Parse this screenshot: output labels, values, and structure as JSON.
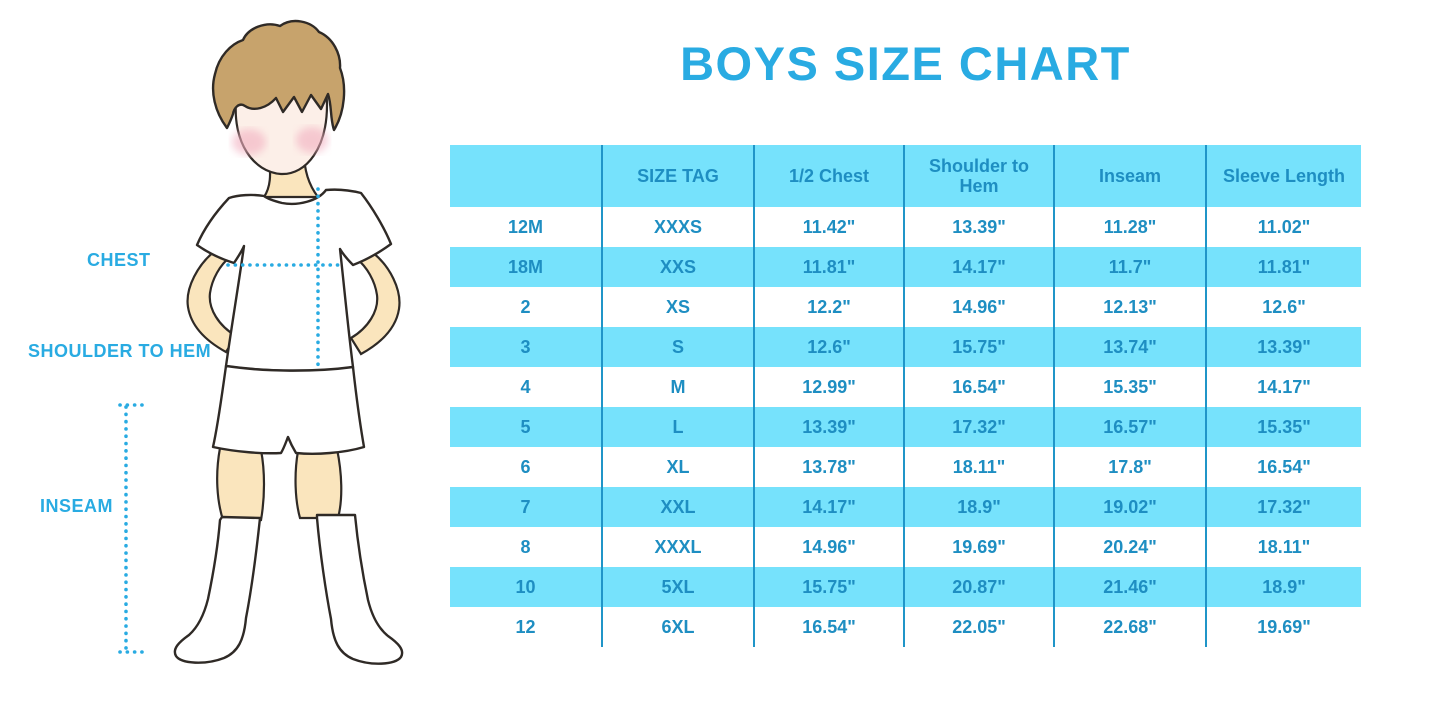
{
  "title": "BOYS SIZE CHART",
  "figure": {
    "illustration": "boy-in-white-tshirt-shorts-and-knee-socks",
    "chest_label": "CHEST",
    "shoulder_label": "SHOULDER TO HEM",
    "inseam_label": "INSEAM"
  },
  "chart_data": {
    "type": "table",
    "columns": [
      "",
      "SIZE TAG",
      "1/2 Chest",
      "Shoulder to Hem",
      "Inseam",
      "Sleeve Length"
    ],
    "rows": [
      [
        "12M",
        "XXXS",
        "11.42\"",
        "13.39\"",
        "11.28\"",
        "11.02\""
      ],
      [
        "18M",
        "XXS",
        "11.81\"",
        "14.17\"",
        "11.7\"",
        "11.81\""
      ],
      [
        "2",
        "XS",
        "12.2\"",
        "14.96\"",
        "12.13\"",
        "12.6\""
      ],
      [
        "3",
        "S",
        "12.6\"",
        "15.75\"",
        "13.74\"",
        "13.39\""
      ],
      [
        "4",
        "M",
        "12.99\"",
        "16.54\"",
        "15.35\"",
        "14.17\""
      ],
      [
        "5",
        "L",
        "13.39\"",
        "17.32\"",
        "16.57\"",
        "15.35\""
      ],
      [
        "6",
        "XL",
        "13.78\"",
        "18.11\"",
        "17.8\"",
        "16.54\""
      ],
      [
        "7",
        "XXL",
        "14.17\"",
        "18.9\"",
        "19.02\"",
        "17.32\""
      ],
      [
        "8",
        "XXXL",
        "14.96\"",
        "19.69\"",
        "20.24\"",
        "18.11\""
      ],
      [
        "10",
        "5XL",
        "15.75\"",
        "20.87\"",
        "21.46\"",
        "18.9\""
      ],
      [
        "12",
        "6XL",
        "16.54\"",
        "22.05\"",
        "22.68\"",
        "19.69\""
      ]
    ],
    "title": "BOYS SIZE CHART",
    "row_striping": "header and alternating rows light blue",
    "legend_position": "none",
    "grid": "vertical column dividers only"
  },
  "colors": {
    "title_blue": "#29ABE2",
    "table_fill_blue": "#76E2FC",
    "table_divider_blue": "#2095C8",
    "table_text_blue": "#1E8EC2",
    "label_blue": "#29ABE2",
    "dotted_line_blue": "#29ABE2",
    "skin_cream": "#FAE5BD",
    "face_pale": "#FCEFE8",
    "hair_brown": "#C7A36C",
    "cheek_pink": "#F2AFC0",
    "outline_dark": "#2F2A26"
  }
}
